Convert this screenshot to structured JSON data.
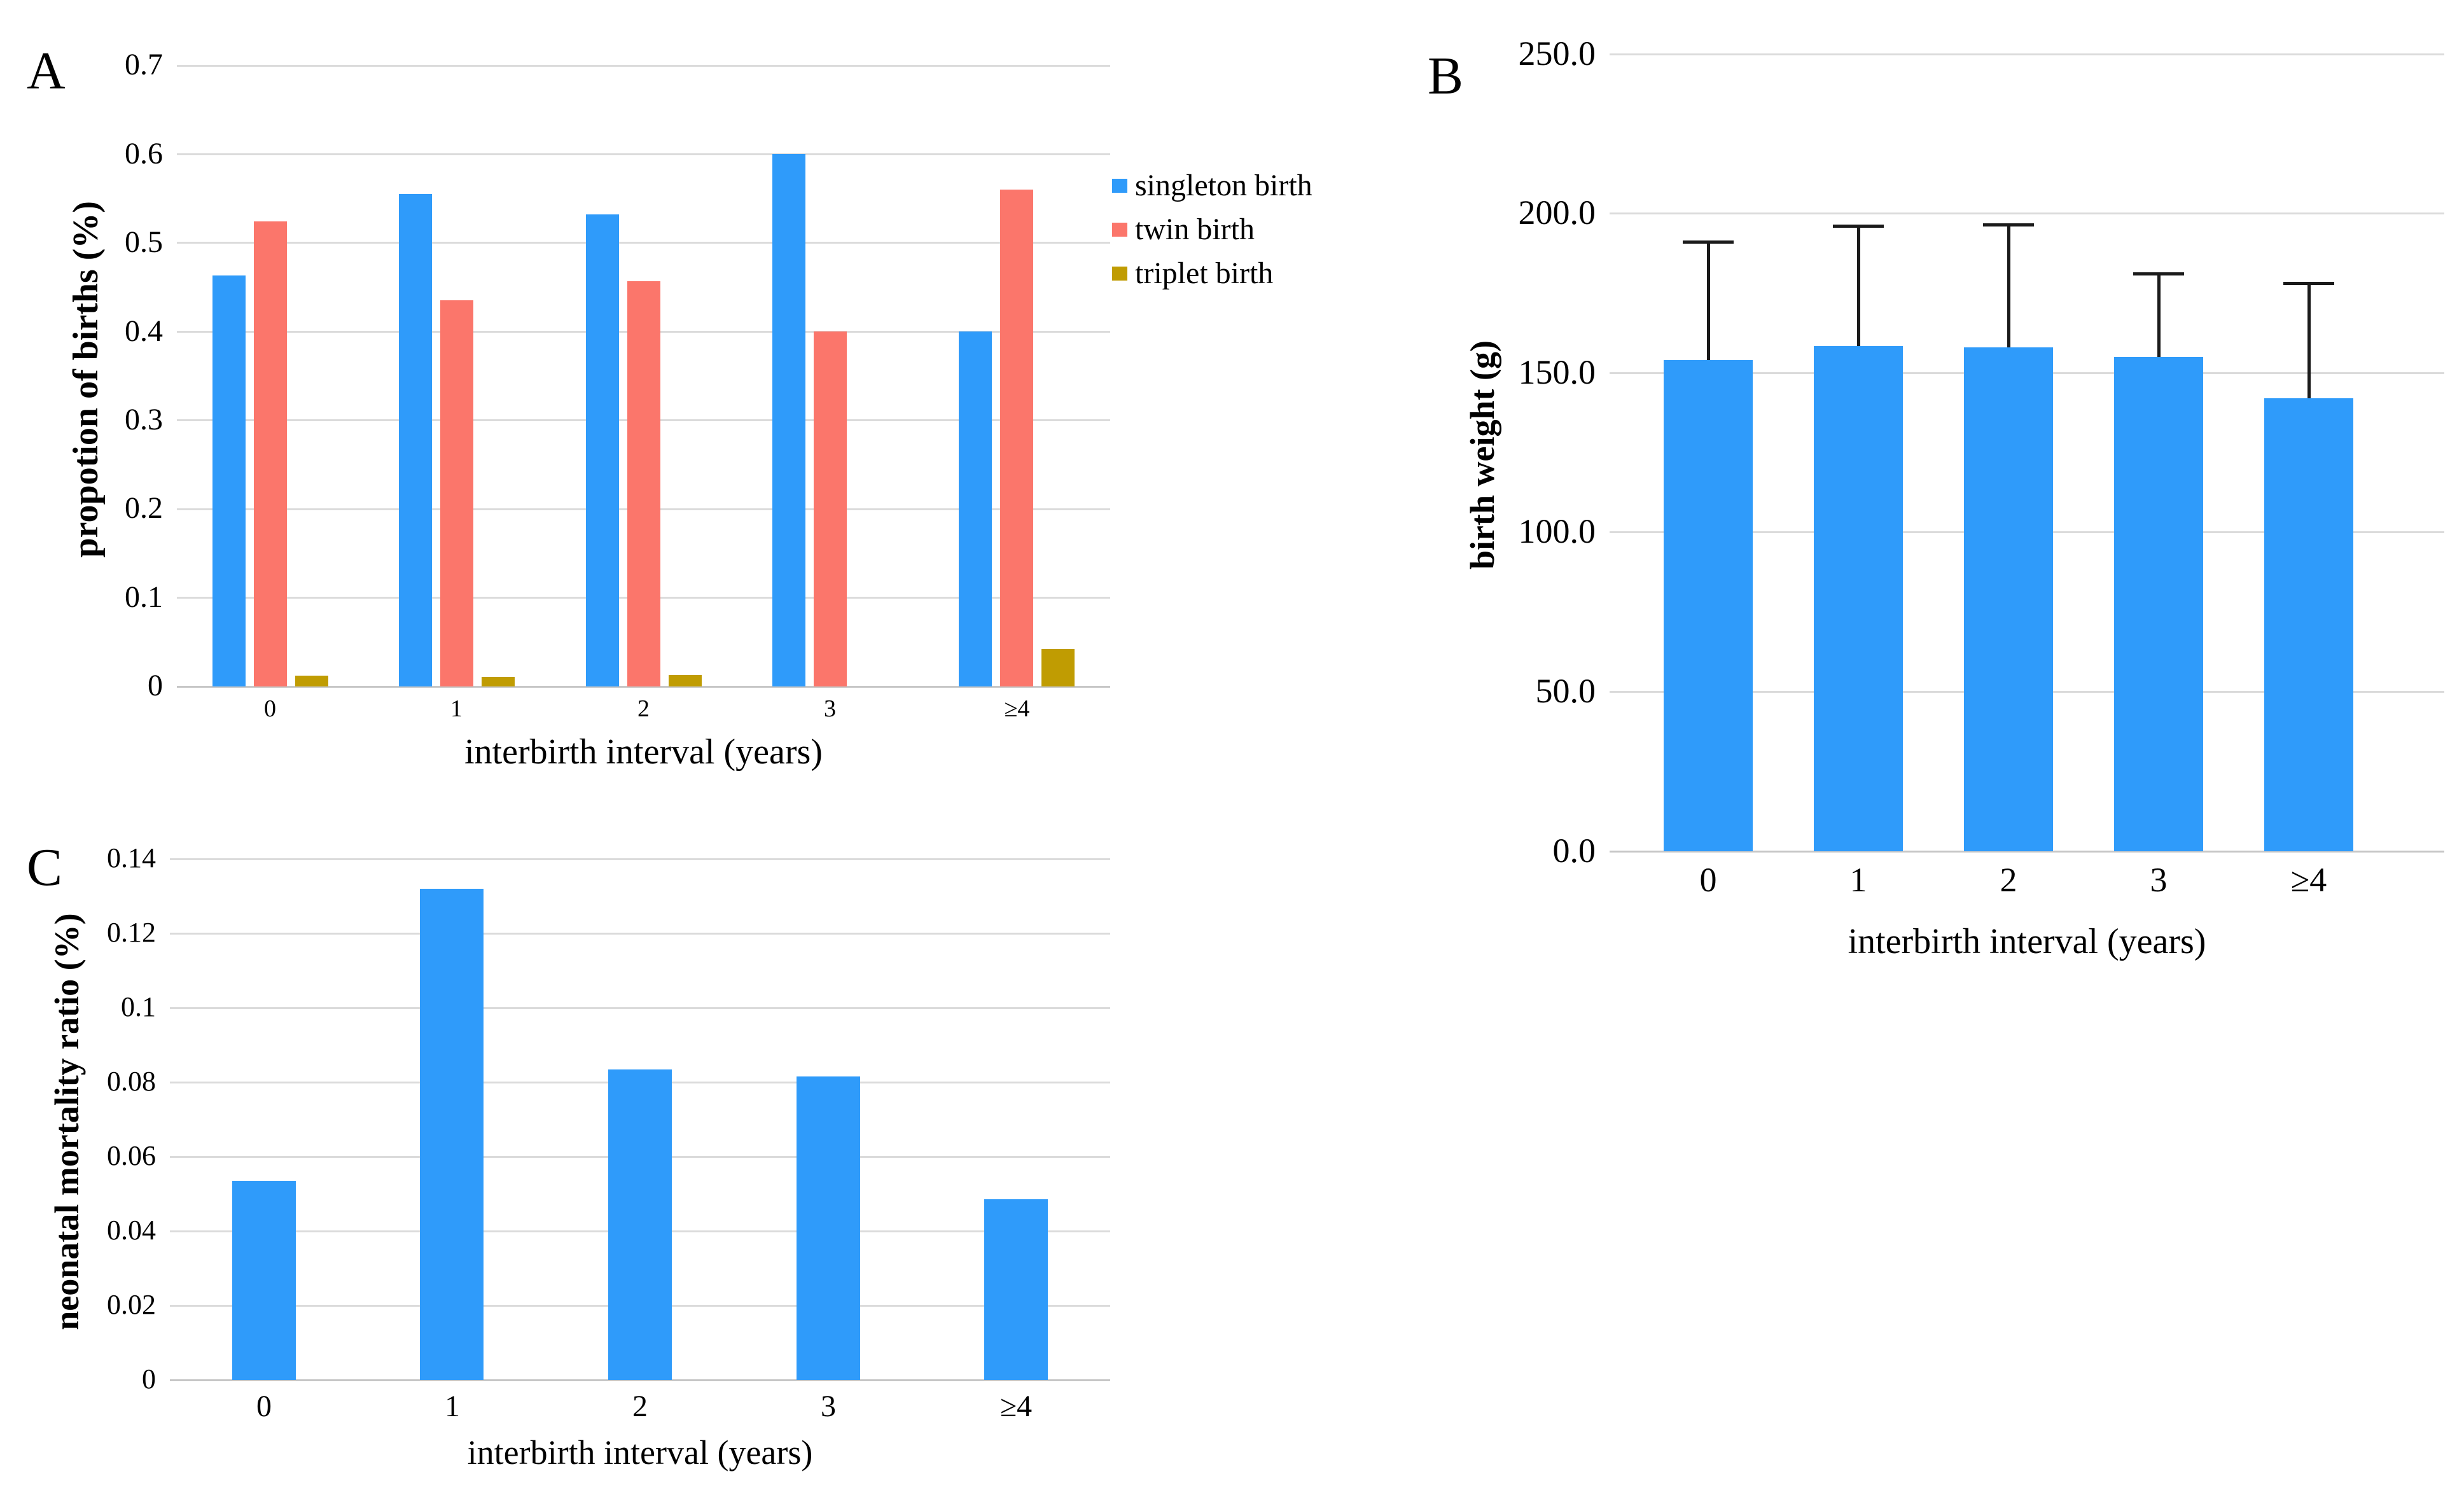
{
  "figure": {
    "background": "#FFFFFF"
  },
  "chart_data": [
    {
      "panel_label": "A",
      "type": "bar",
      "categories": [
        "0",
        "1",
        "2",
        "3",
        "≥4"
      ],
      "series": [
        {
          "name": "singleton birth",
          "color": "#2F9BFA",
          "values": [
            0.463,
            0.555,
            0.532,
            0.6,
            0.4
          ]
        },
        {
          "name": "twin birth",
          "color": "#FB766B",
          "values": [
            0.524,
            0.435,
            0.457,
            0.4,
            0.56
          ]
        },
        {
          "name": "triplet birth",
          "color": "#C09C02",
          "values": [
            0.012,
            0.011,
            0.013,
            0,
            0.042
          ]
        }
      ],
      "xlabel": "interbirth interval (years)",
      "ylabel": "propotion of births (%)",
      "ylim": [
        0,
        0.7
      ],
      "ytick_values": [
        0.7,
        0.6,
        0.5,
        0.4,
        0.3,
        0.2,
        0.1,
        0
      ],
      "ytick_labels": [
        "0.7",
        "0.6",
        "0.5",
        "0.4",
        "0.3",
        "0.2",
        "0.1",
        "0"
      ],
      "legend_position": "right",
      "grid": true
    },
    {
      "panel_label": "B",
      "type": "bar",
      "categories": [
        "0",
        "1",
        "2",
        "3",
        "≥4"
      ],
      "series": [
        {
          "name": "birth weight",
          "color": "#2F9BFA",
          "values": [
            154,
            158.5,
            158,
            155,
            142
          ],
          "errors_plus": [
            37,
            37.5,
            38.5,
            26,
            36
          ]
        }
      ],
      "xlabel": "interbirth interval (years)",
      "ylabel": "birth weight (g)",
      "ylim": [
        0,
        250
      ],
      "ytick_values": [
        250,
        200,
        150,
        100,
        50,
        0
      ],
      "ytick_labels": [
        "250.0",
        "200.0",
        "150.0",
        "100.0",
        "50.0",
        "0.0"
      ],
      "legend_position": "none",
      "grid": true
    },
    {
      "panel_label": "C",
      "type": "bar",
      "categories": [
        "0",
        "1",
        "2",
        "3",
        "≥4"
      ],
      "series": [
        {
          "name": "neonatal mortality ratio",
          "color": "#2F9BFA",
          "values": [
            0.0535,
            0.132,
            0.0835,
            0.0815,
            0.0485
          ]
        }
      ],
      "xlabel": "interbirth interval (years)",
      "ylabel": "neonatal mortality ratio (%)",
      "ylim": [
        0,
        0.14
      ],
      "ytick_values": [
        0.14,
        0.12,
        0.1,
        0.08,
        0.06,
        0.04,
        0.02,
        0
      ],
      "ytick_labels": [
        "0.14",
        "0.12",
        "0.1",
        "0.08",
        "0.06",
        "0.04",
        "0.02",
        "0"
      ],
      "legend_position": "none",
      "grid": true
    }
  ]
}
